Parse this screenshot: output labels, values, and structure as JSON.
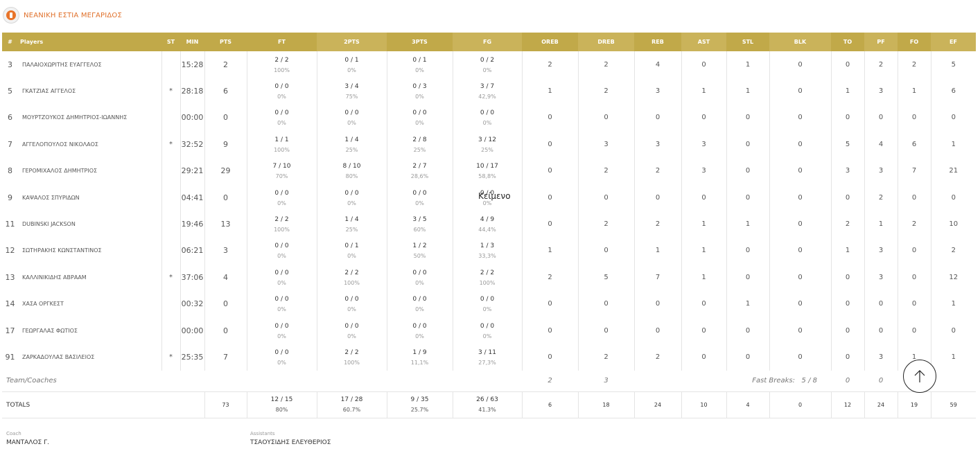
{
  "header": {
    "team_name": "ΝΕΑΝΙΚΗ ΕΣΤΙΑ ΜΕΓΑΡΙΔΟΣ"
  },
  "columns": [
    "#",
    "Players",
    "ST",
    "MIN",
    "PTS",
    "FT",
    "2PTS",
    "3PTS",
    "FG",
    "OREB",
    "DREB",
    "REB",
    "AST",
    "STL",
    "BLK",
    "TO",
    "PF",
    "FO",
    "EF"
  ],
  "players": [
    {
      "num": "3",
      "name": "ΠΑΛΑΙΟΧΩΡΙΤΗΣ ΕΥΑΓΓΕΛΟΣ",
      "st": "",
      "min": "15:28",
      "pts": "2",
      "ft_m": "2 / 2",
      "ft_p": "100%",
      "p2_m": "0 / 1",
      "p2_p": "0%",
      "p3_m": "0 / 1",
      "p3_p": "0%",
      "fg_m": "0 / 2",
      "fg_p": "0%",
      "oreb": "2",
      "dreb": "2",
      "reb": "4",
      "ast": "0",
      "stl": "1",
      "blk": "0",
      "to": "0",
      "pf": "2",
      "fo": "2",
      "ef": "5"
    },
    {
      "num": "5",
      "name": "ΓΚΑΤΖΙΑΣ ΑΓΓΕΛΟΣ",
      "st": "*",
      "min": "28:18",
      "pts": "6",
      "ft_m": "0 / 0",
      "ft_p": "0%",
      "p2_m": "3 / 4",
      "p2_p": "75%",
      "p3_m": "0 / 3",
      "p3_p": "0%",
      "fg_m": "3 / 7",
      "fg_p": "42,9%",
      "oreb": "1",
      "dreb": "2",
      "reb": "3",
      "ast": "1",
      "stl": "1",
      "blk": "0",
      "to": "1",
      "pf": "3",
      "fo": "1",
      "ef": "6"
    },
    {
      "num": "6",
      "name": "ΜΟΥΡΤΖΟΥΚΟΣ ΔΗΜΗΤΡΙΟΣ-ΙΩΑΝΝΗΣ",
      "st": "",
      "min": "00:00",
      "pts": "0",
      "ft_m": "0 / 0",
      "ft_p": "0%",
      "p2_m": "0 / 0",
      "p2_p": "0%",
      "p3_m": "0 / 0",
      "p3_p": "0%",
      "fg_m": "0 / 0",
      "fg_p": "0%",
      "oreb": "0",
      "dreb": "0",
      "reb": "0",
      "ast": "0",
      "stl": "0",
      "blk": "0",
      "to": "0",
      "pf": "0",
      "fo": "0",
      "ef": "0"
    },
    {
      "num": "7",
      "name": "ΑΓΓΕΛΟΠΟΥΛΟΣ ΝΙΚΟΛΑΟΣ",
      "st": "*",
      "min": "32:52",
      "pts": "9",
      "ft_m": "1 / 1",
      "ft_p": "100%",
      "p2_m": "1 / 4",
      "p2_p": "25%",
      "p3_m": "2 / 8",
      "p3_p": "25%",
      "fg_m": "3 / 12",
      "fg_p": "25%",
      "oreb": "0",
      "dreb": "3",
      "reb": "3",
      "ast": "3",
      "stl": "0",
      "blk": "0",
      "to": "5",
      "pf": "4",
      "fo": "6",
      "ef": "1"
    },
    {
      "num": "8",
      "name": "ΓΕΡΟΜΙΧΑΛΟΣ ΔΗΜΗΤΡΙΟΣ",
      "st": "",
      "min": "29:21",
      "pts": "29",
      "ft_m": "7 / 10",
      "ft_p": "70%",
      "p2_m": "8 / 10",
      "p2_p": "80%",
      "p3_m": "2 / 7",
      "p3_p": "28,6%",
      "fg_m": "10 / 17",
      "fg_p": "58,8%",
      "oreb": "0",
      "dreb": "2",
      "reb": "2",
      "ast": "3",
      "stl": "0",
      "blk": "0",
      "to": "3",
      "pf": "3",
      "fo": "7",
      "ef": "21"
    },
    {
      "num": "9",
      "name": "ΚΑΨΑΛΟΣ ΣΠΥΡΙΔΩΝ",
      "st": "",
      "min": "04:41",
      "pts": "0",
      "ft_m": "0 / 0",
      "ft_p": "0%",
      "p2_m": "0 / 0",
      "p2_p": "0%",
      "p3_m": "0 / 0",
      "p3_p": "0%",
      "fg_m": "0 / 0",
      "fg_p": "0%",
      "oreb": "0",
      "dreb": "0",
      "reb": "0",
      "ast": "0",
      "stl": "0",
      "blk": "0",
      "to": "0",
      "pf": "2",
      "fo": "0",
      "ef": "0"
    },
    {
      "num": "11",
      "name": "DUBINSKI JACKSON",
      "st": "",
      "min": "19:46",
      "pts": "13",
      "ft_m": "2 / 2",
      "ft_p": "100%",
      "p2_m": "1 / 4",
      "p2_p": "25%",
      "p3_m": "3 / 5",
      "p3_p": "60%",
      "fg_m": "4 / 9",
      "fg_p": "44,4%",
      "oreb": "0",
      "dreb": "2",
      "reb": "2",
      "ast": "1",
      "stl": "1",
      "blk": "0",
      "to": "2",
      "pf": "1",
      "fo": "2",
      "ef": "10"
    },
    {
      "num": "12",
      "name": "ΣΩΤΗΡΑΚΗΣ ΚΩΝΣΤΑΝΤΙΝΟΣ",
      "st": "",
      "min": "06:21",
      "pts": "3",
      "ft_m": "0 / 0",
      "ft_p": "0%",
      "p2_m": "0 / 1",
      "p2_p": "0%",
      "p3_m": "1 / 2",
      "p3_p": "50%",
      "fg_m": "1 / 3",
      "fg_p": "33,3%",
      "oreb": "1",
      "dreb": "0",
      "reb": "1",
      "ast": "1",
      "stl": "0",
      "blk": "0",
      "to": "1",
      "pf": "3",
      "fo": "0",
      "ef": "2"
    },
    {
      "num": "13",
      "name": "ΚΑΛΛΙΝΙΚΙΔΗΣ ΑΒΡΑΑΜ",
      "st": "*",
      "min": "37:06",
      "pts": "4",
      "ft_m": "0 / 0",
      "ft_p": "0%",
      "p2_m": "2 / 2",
      "p2_p": "100%",
      "p3_m": "0 / 0",
      "p3_p": "0%",
      "fg_m": "2 / 2",
      "fg_p": "100%",
      "oreb": "2",
      "dreb": "5",
      "reb": "7",
      "ast": "1",
      "stl": "0",
      "blk": "0",
      "to": "0",
      "pf": "3",
      "fo": "0",
      "ef": "12"
    },
    {
      "num": "14",
      "name": "ΧΑΣΑ ΟΡΓΚΕΣΤ",
      "st": "",
      "min": "00:32",
      "pts": "0",
      "ft_m": "0 / 0",
      "ft_p": "0%",
      "p2_m": "0 / 0",
      "p2_p": "0%",
      "p3_m": "0 / 0",
      "p3_p": "0%",
      "fg_m": "0 / 0",
      "fg_p": "0%",
      "oreb": "0",
      "dreb": "0",
      "reb": "0",
      "ast": "0",
      "stl": "1",
      "blk": "0",
      "to": "0",
      "pf": "0",
      "fo": "0",
      "ef": "1"
    },
    {
      "num": "17",
      "name": "ΓΕΩΡΓΑΛΑΣ ΦΩΤΙΟΣ",
      "st": "",
      "min": "00:00",
      "pts": "0",
      "ft_m": "0 / 0",
      "ft_p": "0%",
      "p2_m": "0 / 0",
      "p2_p": "0%",
      "p3_m": "0 / 0",
      "p3_p": "0%",
      "fg_m": "0 / 0",
      "fg_p": "0%",
      "oreb": "0",
      "dreb": "0",
      "reb": "0",
      "ast": "0",
      "stl": "0",
      "blk": "0",
      "to": "0",
      "pf": "0",
      "fo": "0",
      "ef": "0"
    },
    {
      "num": "91",
      "name": "ΖΑΡΚΑΔΟΥΛΑΣ ΒΑΣΙΛΕΙΟΣ",
      "st": "*",
      "min": "25:35",
      "pts": "7",
      "ft_m": "0 / 0",
      "ft_p": "0%",
      "p2_m": "2 / 2",
      "p2_p": "100%",
      "p3_m": "1 / 9",
      "p3_p": "11,1%",
      "fg_m": "3 / 11",
      "fg_p": "27,3%",
      "oreb": "0",
      "dreb": "2",
      "reb": "2",
      "ast": "0",
      "stl": "0",
      "blk": "0",
      "to": "0",
      "pf": "3",
      "fo": "1",
      "ef": "1"
    }
  ],
  "team_row": {
    "label": "Team/Coaches",
    "oreb": "2",
    "dreb": "3",
    "fast_breaks_label": "Fast Breaks:",
    "fast_breaks_value": "5 / 8",
    "to": "0",
    "pf": "0"
  },
  "totals": {
    "label": "TOTALS",
    "pts": "73",
    "ft_m": "12 / 15",
    "ft_p": "80%",
    "p2_m": "17 / 28",
    "p2_p": "60.7%",
    "p3_m": "9 / 35",
    "p3_p": "25.7%",
    "fg_m": "26 / 63",
    "fg_p": "41.3%",
    "oreb": "6",
    "dreb": "18",
    "reb": "24",
    "ast": "10",
    "stl": "4",
    "blk": "0",
    "to": "12",
    "pf": "24",
    "fo": "19",
    "ef": "59"
  },
  "staff": {
    "coach_label": "Coach",
    "coach_name": "ΜΑΝΤΑΛΟΣ Γ.",
    "assistants_label": "Assistants",
    "assistants_name": "ΤΣΑΟΥΣΙΔΗΣ ΕΛΕΥΘΕΡΙΟΣ"
  },
  "overlay_text": "Κείμενο",
  "icons": {
    "logo": "team-logo-icon",
    "scroll": "arrow-up-icon"
  },
  "colors": {
    "header": "#c1a949",
    "accent": "#e0702a"
  }
}
